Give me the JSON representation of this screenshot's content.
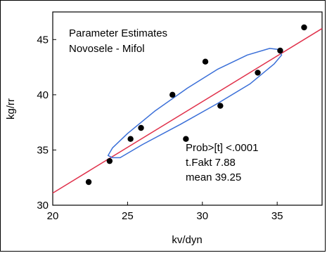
{
  "chart_data": {
    "type": "scatter",
    "title_lines": [
      "Parameter Estimates",
      "Novosele - Mifol"
    ],
    "xlabel": "kv/dyn",
    "ylabel": "kg/rr",
    "xlim": [
      20,
      38
    ],
    "ylim": [
      30,
      47.5
    ],
    "x_ticks": [
      "20",
      "25",
      "30",
      "35"
    ],
    "y_ticks": [
      "30",
      "35",
      "40",
      "45"
    ],
    "points": [
      {
        "x": 22.4,
        "y": 32.1
      },
      {
        "x": 23.8,
        "y": 34.0
      },
      {
        "x": 25.2,
        "y": 36.0
      },
      {
        "x": 25.9,
        "y": 37.0
      },
      {
        "x": 28.0,
        "y": 40.0
      },
      {
        "x": 28.9,
        "y": 36.0
      },
      {
        "x": 30.2,
        "y": 43.0
      },
      {
        "x": 31.2,
        "y": 39.0
      },
      {
        "x": 33.7,
        "y": 42.0
      },
      {
        "x": 35.2,
        "y": 44.0
      },
      {
        "x": 36.8,
        "y": 46.1
      }
    ],
    "regression_line": {
      "x": [
        20,
        38
      ],
      "y": [
        31.1,
        46.0
      ],
      "color": "#e0314b"
    },
    "ellipse": {
      "color": "#3a6fd8",
      "points": [
        [
          24.0,
          34.3
        ],
        [
          23.7,
          34.5
        ],
        [
          24.0,
          35.2
        ],
        [
          25.0,
          36.5
        ],
        [
          26.8,
          38.5
        ],
        [
          29.0,
          40.6
        ],
        [
          31.0,
          42.3
        ],
        [
          33.0,
          43.6
        ],
        [
          34.5,
          44.2
        ],
        [
          35.1,
          44.1
        ],
        [
          35.3,
          43.6
        ],
        [
          34.8,
          42.8
        ],
        [
          33.2,
          41.0
        ],
        [
          31.0,
          39.2
        ],
        [
          28.5,
          37.3
        ],
        [
          26.0,
          35.5
        ],
        [
          24.5,
          34.3
        ],
        [
          24.0,
          34.3
        ]
      ]
    },
    "annotations": [
      "Prob>[t] <.0001",
      "t.Fakt 7.88",
      "mean 39.25"
    ],
    "point_color": "#000000",
    "grid": false
  }
}
